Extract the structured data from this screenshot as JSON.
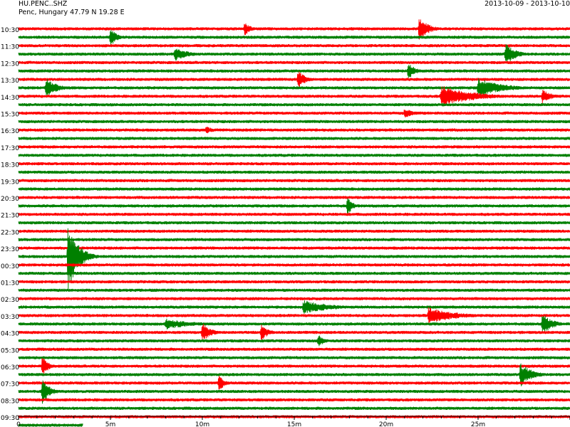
{
  "header": {
    "station": "HU.PENC..SHZ",
    "location": "Penc, Hungary  47.79 N 19.28 E",
    "date_range": "2013-10-09 - 2013-10-10"
  },
  "colors": {
    "trace_a": "#ff0000",
    "trace_b": "#008000",
    "axis": "#000000"
  },
  "chart_data": {
    "type": "line",
    "title": "",
    "xlabel": "",
    "ylabel": "",
    "x_unit": "minutes",
    "xlim": [
      0,
      30
    ],
    "x_ticks": [
      {
        "value": 0,
        "label": "0"
      },
      {
        "value": 5,
        "label": "5m"
      },
      {
        "value": 10,
        "label": "10m"
      },
      {
        "value": 15,
        "label": "15m"
      },
      {
        "value": 20,
        "label": "20m"
      },
      {
        "value": 25,
        "label": "25m"
      }
    ],
    "traces_per_label": 2,
    "row_labels": [
      "10:30",
      "11:30",
      "12:30",
      "13:30",
      "14:30",
      "15:30",
      "16:30",
      "17:30",
      "18:30",
      "19:30",
      "20:30",
      "21:30",
      "22:30",
      "23:30",
      "00:30",
      "01:30",
      "02:30",
      "03:30",
      "04:30",
      "05:30",
      "06:30",
      "07:30",
      "08:30",
      "09:30"
    ],
    "last_trace_end_minute": 3.5,
    "baseline_amplitude": 2.2,
    "events": [
      {
        "trace": 0,
        "minute": 12.3,
        "duration": 1.0,
        "amplitude": 10
      },
      {
        "trace": 0,
        "minute": 21.8,
        "duration": 1.6,
        "amplitude": 16
      },
      {
        "trace": 1,
        "minute": 5.0,
        "duration": 1.0,
        "amplitude": 14
      },
      {
        "trace": 3,
        "minute": 8.5,
        "duration": 2.2,
        "amplitude": 10
      },
      {
        "trace": 3,
        "minute": 26.5,
        "duration": 1.6,
        "amplitude": 16
      },
      {
        "trace": 5,
        "minute": 21.2,
        "duration": 1.2,
        "amplitude": 12
      },
      {
        "trace": 6,
        "minute": 15.2,
        "duration": 1.2,
        "amplitude": 14
      },
      {
        "trace": 7,
        "minute": 1.5,
        "duration": 1.8,
        "amplitude": 14
      },
      {
        "trace": 7,
        "minute": 25.0,
        "duration": 4.0,
        "amplitude": 14
      },
      {
        "trace": 8,
        "minute": 23.0,
        "duration": 5.0,
        "amplitude": 16
      },
      {
        "trace": 8,
        "minute": 28.5,
        "duration": 1.6,
        "amplitude": 10
      },
      {
        "trace": 10,
        "minute": 21.0,
        "duration": 1.8,
        "amplitude": 7
      },
      {
        "trace": 12,
        "minute": 10.2,
        "duration": 1.2,
        "amplitude": 6
      },
      {
        "trace": 21,
        "minute": 17.9,
        "duration": 0.8,
        "amplitude": 14
      },
      {
        "trace": 27,
        "minute": 2.7,
        "duration": 1.6,
        "amplitude": 50
      },
      {
        "trace": 33,
        "minute": 15.5,
        "duration": 4.5,
        "amplitude": 10
      },
      {
        "trace": 34,
        "minute": 22.3,
        "duration": 4.5,
        "amplitude": 12
      },
      {
        "trace": 35,
        "minute": 8.0,
        "duration": 4.5,
        "amplitude": 8
      },
      {
        "trace": 35,
        "minute": 28.5,
        "duration": 1.6,
        "amplitude": 16
      },
      {
        "trace": 36,
        "minute": 10.0,
        "duration": 1.4,
        "amplitude": 14
      },
      {
        "trace": 36,
        "minute": 13.2,
        "duration": 1.2,
        "amplitude": 12
      },
      {
        "trace": 37,
        "minute": 16.3,
        "duration": 1.0,
        "amplitude": 10
      },
      {
        "trace": 40,
        "minute": 1.3,
        "duration": 0.9,
        "amplitude": 16
      },
      {
        "trace": 41,
        "minute": 27.3,
        "duration": 1.8,
        "amplitude": 18
      },
      {
        "trace": 42,
        "minute": 10.9,
        "duration": 0.8,
        "amplitude": 14
      },
      {
        "trace": 43,
        "minute": 1.3,
        "duration": 1.2,
        "amplitude": 18
      }
    ]
  }
}
